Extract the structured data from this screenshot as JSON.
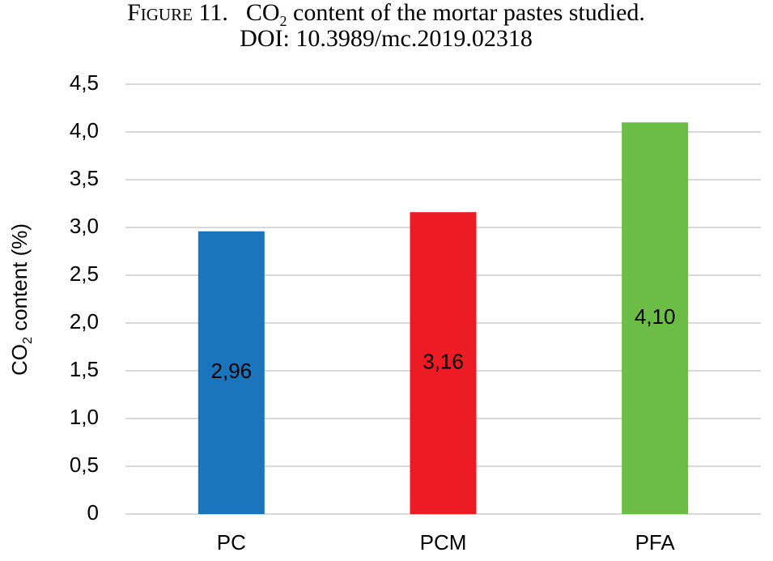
{
  "chart_data": {
    "type": "bar",
    "title": {
      "figure": "Figure 11.",
      "parts": [
        "CO",
        "2",
        " content of the mortar pastes studied."
      ]
    },
    "subtitle": "DOI: 10.3989/mc.2019.02318",
    "y_label": {
      "parts": [
        "CO",
        "2",
        " content (%)"
      ]
    },
    "categories": [
      "PC",
      "PCM",
      "PFA"
    ],
    "values": [
      2.96,
      3.16,
      4.1
    ],
    "value_labels": [
      "2,96",
      "3,16",
      "4,10"
    ],
    "colors": [
      "#1a75bc",
      "#ed1c24",
      "#6cbd45"
    ],
    "ylim": [
      0,
      4.5
    ],
    "yticks": [
      0,
      {
        "value": 0.5,
        "label": "0,5"
      },
      {
        "value": 1.0,
        "label": "1,0"
      },
      {
        "value": 1.5,
        "label": "1,5"
      },
      {
        "value": 2.0,
        "label": "2,0"
      },
      {
        "value": 2.5,
        "label": "2,5"
      },
      {
        "value": 3.0,
        "label": "3,0"
      },
      {
        "value": 3.5,
        "label": "3,5"
      },
      {
        "value": 4.0,
        "label": "4,0"
      },
      {
        "value": 4.5,
        "label": "4,5"
      }
    ],
    "grid": true
  }
}
